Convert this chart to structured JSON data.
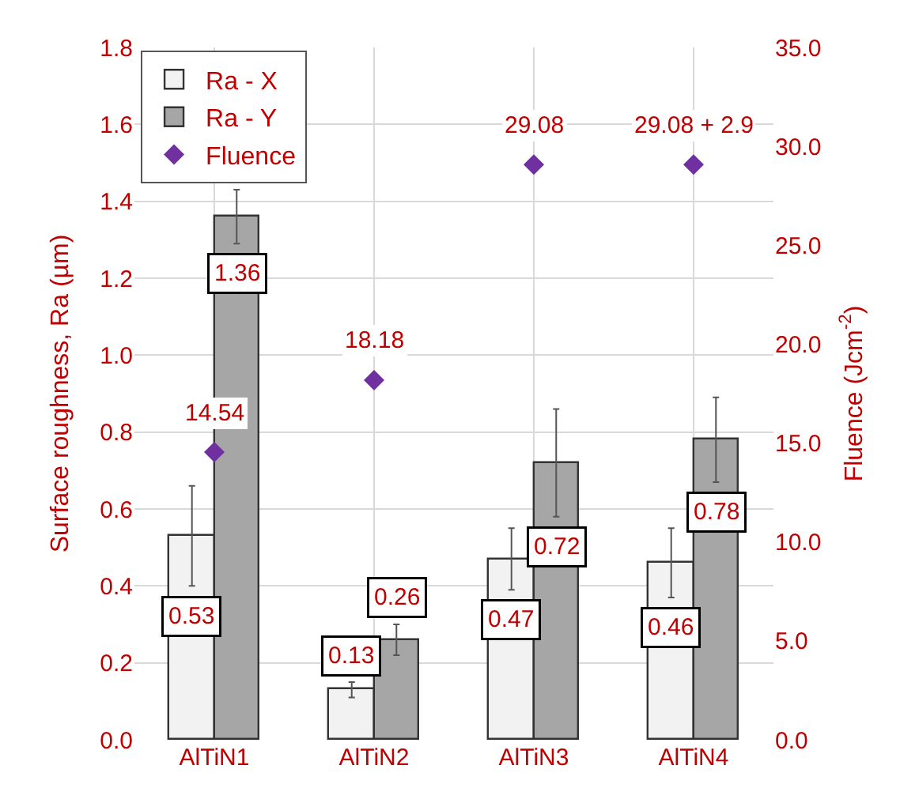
{
  "chart_data": {
    "type": "bar",
    "ylabel": "Surface roughness, Ra (µm)",
    "y2label": "Fluence (Jcm$^{-2}$)",
    "categories": [
      "AlTiN1",
      "AlTiN2",
      "AlTiN3",
      "AlTiN4"
    ],
    "series": [
      {
        "name": "Ra - X",
        "color": "#f2f2f2",
        "values": [
          0.53,
          0.13,
          0.47,
          0.46
        ],
        "errors": [
          0.13,
          0.02,
          0.08,
          0.09
        ],
        "value_labels": [
          "0.53",
          "0.13",
          "0.47",
          "0.46"
        ]
      },
      {
        "name": "Ra - Y",
        "color": "#a6a6a6",
        "values": [
          1.36,
          0.26,
          0.72,
          0.78
        ],
        "errors": [
          0.07,
          0.04,
          0.14,
          0.11
        ],
        "value_labels": [
          "1.36",
          "0.26",
          "0.72",
          "0.78"
        ]
      },
      {
        "name": "Fluence",
        "type": "scatter",
        "axis": "y2",
        "marker": "diamond",
        "color": "#7030a0",
        "values": [
          14.54,
          18.18,
          29.08,
          29.08
        ],
        "value_labels": [
          "14.54",
          "18.18",
          "29.08",
          "29.08 + 2.9"
        ]
      }
    ],
    "ylim": [
      0,
      1.8
    ],
    "yticks": [
      {
        "value": 0,
        "label": "0.0"
      },
      0.2,
      0.4,
      0.6,
      0.8,
      {
        "value": 1,
        "label": "1.0"
      },
      1.2,
      1.4,
      1.6,
      1.8
    ],
    "y2lim": [
      0,
      35
    ],
    "y2ticks": [
      {
        "value": 0,
        "label": "0.0"
      },
      {
        "value": 5,
        "label": "5.0"
      },
      {
        "value": 10,
        "label": "10.0"
      },
      {
        "value": 15,
        "label": "15.0"
      },
      {
        "value": 20,
        "label": "20.0"
      },
      {
        "value": 25,
        "label": "25.0"
      },
      {
        "value": 30,
        "label": "30.0"
      },
      {
        "value": 35,
        "label": "35.0"
      }
    ],
    "grid": true,
    "legend": "top left"
  }
}
